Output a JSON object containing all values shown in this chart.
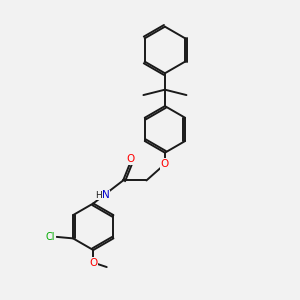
{
  "bg_color": "#f2f2f2",
  "bond_color": "#1a1a1a",
  "atom_colors": {
    "O": "#ff0000",
    "N": "#0000cc",
    "Cl": "#00aa00",
    "C": "#1a1a1a"
  },
  "figsize": [
    3.0,
    3.0
  ],
  "dpi": 100,
  "lw": 1.4
}
